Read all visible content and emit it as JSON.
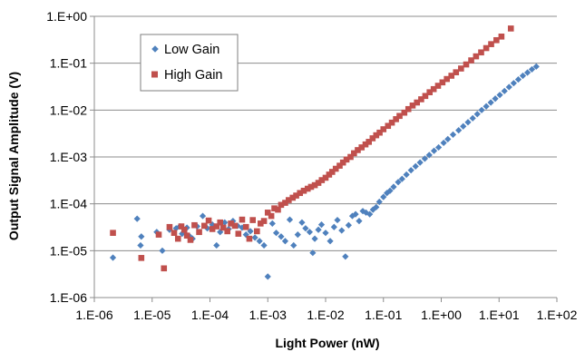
{
  "chart_data": {
    "type": "scatter",
    "title": "",
    "xlabel": "Light Power (nW)",
    "ylabel": "Output Signal Amplitude (V)",
    "x_scale": "log",
    "y_scale": "log",
    "xlim": [
      1e-06,
      100
    ],
    "ylim": [
      1e-06,
      1
    ],
    "x_ticks": [
      "1.E-06",
      "1.E-05",
      "1.E-04",
      "1.E-03",
      "1.E-02",
      "1.E-01",
      "1.E+00",
      "1.E+01",
      "1.E+02"
    ],
    "y_ticks": [
      "1.E+00",
      "1.E-01",
      "1.E-02",
      "1.E-03",
      "1.E-04",
      "1.E-05",
      "1.E-06"
    ],
    "grid": "horizontal",
    "legend_position": "top-left",
    "series": [
      {
        "name": "Low Gain",
        "color": "#4f81bd",
        "marker": "diamond",
        "points": [
          [
            2.1e-06,
            7.1e-06
          ],
          [
            5.5e-06,
            4.8e-05
          ],
          [
            6.3e-06,
            1.3e-05
          ],
          [
            6.5e-06,
            2e-05
          ],
          [
            1.2e-05,
            2.5e-05
          ],
          [
            1.5e-05,
            1e-05
          ],
          [
            2e-05,
            2.8e-05
          ],
          [
            2.6e-05,
            3e-05
          ],
          [
            3e-05,
            3.3e-05
          ],
          [
            3.3e-05,
            2.3e-05
          ],
          [
            4e-05,
            3.1e-05
          ],
          [
            4.5e-05,
            2e-05
          ],
          [
            5e-05,
            1.8e-05
          ],
          [
            6e-05,
            3.3e-05
          ],
          [
            7.5e-05,
            5.5e-05
          ],
          [
            9e-05,
            3e-05
          ],
          [
            0.00011,
            3.6e-05
          ],
          [
            0.00013,
            1.3e-05
          ],
          [
            0.00015,
            2.5e-05
          ],
          [
            0.00018,
            4e-05
          ],
          [
            0.00021,
            2.9e-05
          ],
          [
            0.00025,
            4.3e-05
          ],
          [
            0.0003,
            3.4e-05
          ],
          [
            0.00036,
            3.1e-05
          ],
          [
            0.00042,
            2.2e-05
          ],
          [
            0.0005,
            2.6e-05
          ],
          [
            0.0006,
            1.9e-05
          ],
          [
            0.00072,
            1.6e-05
          ],
          [
            0.00086,
            1.3e-05
          ],
          [
            0.001,
            2.8e-06
          ],
          [
            0.0012,
            3.8e-05
          ],
          [
            0.0014,
            2.4e-05
          ],
          [
            0.0017,
            2e-05
          ],
          [
            0.002,
            1.6e-05
          ],
          [
            0.0024,
            4.6e-05
          ],
          [
            0.0028,
            1.3e-05
          ],
          [
            0.0033,
            2.2e-05
          ],
          [
            0.0039,
            4e-05
          ],
          [
            0.0045,
            3e-05
          ],
          [
            0.0053,
            2.5e-05
          ],
          [
            0.006,
            9e-06
          ],
          [
            0.0065,
            1.8e-05
          ],
          [
            0.0075,
            2.8e-05
          ],
          [
            0.0085,
            3.6e-05
          ],
          [
            0.01,
            2.4e-05
          ],
          [
            0.012,
            1.6e-05
          ],
          [
            0.014,
            3.2e-05
          ],
          [
            0.016,
            4.5e-05
          ],
          [
            0.019,
            2.7e-05
          ],
          [
            0.022,
            7.5e-06
          ],
          [
            0.025,
            3.5e-05
          ],
          [
            0.029,
            5.5e-05
          ],
          [
            0.033,
            6e-05
          ],
          [
            0.038,
            4.3e-05
          ],
          [
            0.044,
            7e-05
          ],
          [
            0.05,
            6.5e-05
          ],
          [
            0.058,
            6e-05
          ],
          [
            0.066,
            7.5e-05
          ],
          [
            0.075,
            8.5e-05
          ],
          [
            0.085,
            0.00011
          ],
          [
            0.1,
            0.00014
          ],
          [
            0.115,
            0.00017
          ],
          [
            0.13,
            0.00019
          ],
          [
            0.15,
            0.00023
          ],
          [
            0.18,
            0.00029
          ],
          [
            0.21,
            0.00034
          ],
          [
            0.25,
            0.00042
          ],
          [
            0.3,
            0.00052
          ],
          [
            0.36,
            0.00063
          ],
          [
            0.43,
            0.00076
          ],
          [
            0.52,
            0.00092
          ],
          [
            0.62,
            0.0011
          ],
          [
            0.75,
            0.00135
          ],
          [
            0.9,
            0.0016
          ],
          [
            1.1,
            0.002
          ],
          [
            1.3,
            0.0024
          ],
          [
            1.6,
            0.003
          ],
          [
            2.0,
            0.0037
          ],
          [
            2.4,
            0.0045
          ],
          [
            2.9,
            0.0055
          ],
          [
            3.5,
            0.0067
          ],
          [
            4.2,
            0.0082
          ],
          [
            5.0,
            0.01
          ],
          [
            6.0,
            0.012
          ],
          [
            7.2,
            0.0145
          ],
          [
            8.6,
            0.0175
          ],
          [
            10.3,
            0.021
          ],
          [
            12.4,
            0.0255
          ],
          [
            14.9,
            0.031
          ],
          [
            17.9,
            0.0375
          ],
          [
            21.5,
            0.045
          ],
          [
            25.8,
            0.054
          ],
          [
            31,
            0.063
          ],
          [
            37,
            0.074
          ],
          [
            44,
            0.085
          ]
        ]
      },
      {
        "name": "High Gain",
        "color": "#c0504d",
        "marker": "square",
        "points": [
          [
            2.1e-06,
            2.4e-05
          ],
          [
            6.5e-06,
            7e-06
          ],
          [
            1.3e-05,
            2.2e-05
          ],
          [
            1.6e-05,
            4.2e-06
          ],
          [
            2e-05,
            3.2e-05
          ],
          [
            2.4e-05,
            2.4e-05
          ],
          [
            2.8e-05,
            1.8e-05
          ],
          [
            3.2e-05,
            3.3e-05
          ],
          [
            3.6e-05,
            2.8e-05
          ],
          [
            4e-05,
            2.1e-05
          ],
          [
            4.6e-05,
            1.7e-05
          ],
          [
            5.4e-05,
            3.5e-05
          ],
          [
            6.5e-05,
            2.5e-05
          ],
          [
            8e-05,
            3.4e-05
          ],
          [
            9.5e-05,
            4.4e-05
          ],
          [
            0.00011,
            2.9e-05
          ],
          [
            0.00013,
            3.3e-05
          ],
          [
            0.00015,
            4e-05
          ],
          [
            0.00017,
            3.1e-05
          ],
          [
            0.0002,
            2.6e-05
          ],
          [
            0.00023,
            3.8e-05
          ],
          [
            0.00027,
            3.4e-05
          ],
          [
            0.00031,
            2.3e-05
          ],
          [
            0.00036,
            4.6e-05
          ],
          [
            0.00042,
            3.2e-05
          ],
          [
            0.00048,
            1.8e-05
          ],
          [
            0.00055,
            4.5e-05
          ],
          [
            0.00065,
            2.6e-05
          ],
          [
            0.00075,
            3.8e-05
          ],
          [
            0.00086,
            4.3e-05
          ],
          [
            0.001,
            6.5e-05
          ],
          [
            0.00115,
            5.5e-05
          ],
          [
            0.0013,
            8e-05
          ],
          [
            0.0015,
            7.5e-05
          ],
          [
            0.0017,
            9.5e-05
          ],
          [
            0.002,
            0.000105
          ],
          [
            0.0023,
            0.00012
          ],
          [
            0.0027,
            0.000135
          ],
          [
            0.0031,
            0.00015
          ],
          [
            0.0036,
            0.00017
          ],
          [
            0.0042,
            0.00019
          ],
          [
            0.0049,
            0.00021
          ],
          [
            0.0056,
            0.00023
          ],
          [
            0.0065,
            0.00025
          ],
          [
            0.0075,
            0.00028
          ],
          [
            0.0086,
            0.00032
          ],
          [
            0.01,
            0.00036
          ],
          [
            0.0115,
            0.00042
          ],
          [
            0.013,
            0.00048
          ],
          [
            0.015,
            0.00056
          ],
          [
            0.0175,
            0.00065
          ],
          [
            0.02,
            0.00076
          ],
          [
            0.023,
            0.00088
          ],
          [
            0.027,
            0.001
          ],
          [
            0.031,
            0.0012
          ],
          [
            0.036,
            0.0014
          ],
          [
            0.042,
            0.0016
          ],
          [
            0.049,
            0.00185
          ],
          [
            0.056,
            0.0021
          ],
          [
            0.065,
            0.0025
          ],
          [
            0.075,
            0.0029
          ],
          [
            0.086,
            0.0033
          ],
          [
            0.1,
            0.0039
          ],
          [
            0.12,
            0.0046
          ],
          [
            0.14,
            0.0054
          ],
          [
            0.165,
            0.0064
          ],
          [
            0.19,
            0.0075
          ],
          [
            0.23,
            0.0088
          ],
          [
            0.27,
            0.0105
          ],
          [
            0.32,
            0.0125
          ],
          [
            0.38,
            0.0145
          ],
          [
            0.45,
            0.017
          ],
          [
            0.53,
            0.02
          ],
          [
            0.63,
            0.024
          ],
          [
            0.74,
            0.028
          ],
          [
            0.88,
            0.033
          ],
          [
            1.05,
            0.039
          ],
          [
            1.25,
            0.046
          ],
          [
            1.5,
            0.054
          ],
          [
            1.8,
            0.064
          ],
          [
            2.2,
            0.077
          ],
          [
            2.7,
            0.094
          ],
          [
            3.3,
            0.115
          ],
          [
            4.0,
            0.14
          ],
          [
            4.9,
            0.17
          ],
          [
            6.0,
            0.21
          ],
          [
            7.3,
            0.255
          ],
          [
            9.0,
            0.31
          ],
          [
            11,
            0.37
          ],
          [
            16,
            0.55
          ]
        ]
      }
    ]
  }
}
